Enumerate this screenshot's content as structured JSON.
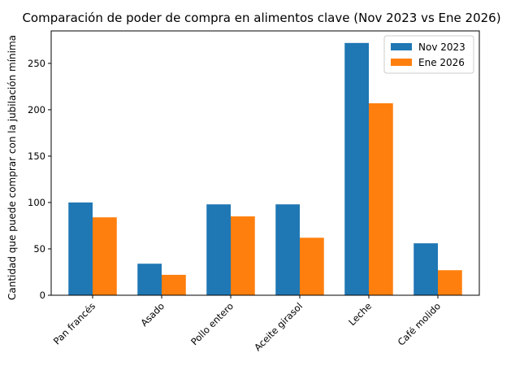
{
  "chart_data": {
    "type": "bar",
    "title": "Comparación de poder de compra en alimentos clave (Nov 2023 vs Ene 2026)",
    "xlabel": "",
    "ylabel": "Cantidad que puede comprar con la jubilación mínima",
    "categories": [
      "Pan francés",
      "Asado",
      "Pollo entero",
      "Aceite girasol",
      "Leche",
      "Café molido"
    ],
    "series": [
      {
        "name": "Nov 2023",
        "color": "#1f77b4",
        "values": [
          100,
          34,
          98,
          98,
          272,
          56
        ]
      },
      {
        "name": "Ene 2026",
        "color": "#ff7f0e",
        "values": [
          84,
          22,
          85,
          62,
          207,
          27
        ]
      }
    ],
    "ylim": [
      0,
      285
    ],
    "yticks": [
      0,
      50,
      100,
      150,
      200,
      250
    ],
    "grid": false,
    "legend_position": "top-right"
  }
}
